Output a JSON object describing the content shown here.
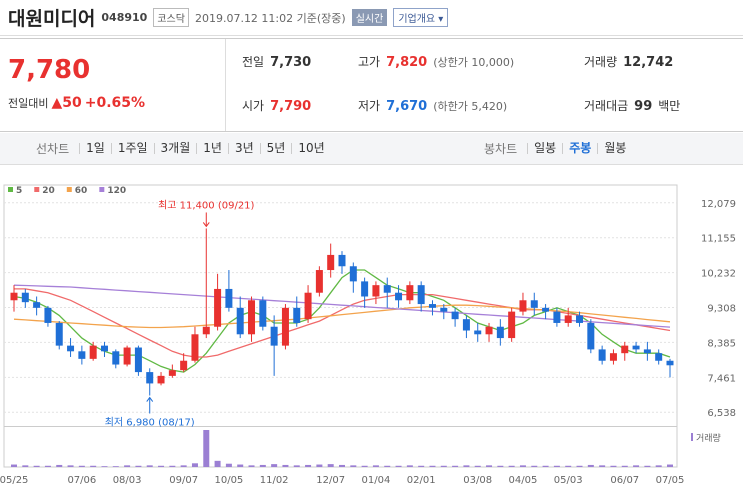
{
  "header": {
    "name": "대원미디어",
    "code": "048910",
    "market": "코스닥",
    "time": "2019.07.12 11:02 기준(장중)",
    "realtime": "실시간",
    "company": "기업개요"
  },
  "quote": {
    "price": "7,780",
    "change_label": "전일대비",
    "change": "▲50",
    "change_pct": "+0.65%",
    "items": [
      {
        "label": "전일",
        "value": "7,730"
      },
      {
        "label": "고가",
        "value": "7,820",
        "note": "(상한가 10,000)"
      },
      {
        "label": "거래량",
        "value": "12,742"
      },
      {
        "label": "시가",
        "value": "7,790"
      },
      {
        "label": "저가",
        "value": "7,670",
        "note": "(하한가 5,420)"
      },
      {
        "label": "거래대금",
        "value": "99",
        "unit": "백만"
      }
    ]
  },
  "tabs": {
    "line_label": "선차트",
    "line": [
      "1일",
      "1주일",
      "3개월",
      "1년",
      "3년",
      "5년",
      "10년"
    ],
    "candle_label": "봉차트",
    "candle": [
      "일봉",
      "주봉",
      "월봉"
    ],
    "selected_candle": 1
  },
  "chart_data": {
    "type": "candlestick",
    "dates": [
      "05/25",
      null,
      null,
      null,
      null,
      null,
      "07/06",
      null,
      null,
      null,
      "08/03",
      null,
      null,
      null,
      null,
      "09/07",
      null,
      null,
      null,
      "10/05",
      null,
      null,
      null,
      "11/02",
      null,
      null,
      null,
      null,
      "12/07",
      null,
      null,
      null,
      "01/04",
      null,
      null,
      null,
      "02/01",
      null,
      null,
      null,
      null,
      "03/08",
      null,
      null,
      null,
      "04/05",
      null,
      null,
      null,
      "05/03",
      null,
      null,
      null,
      null,
      "06/07",
      null,
      null,
      null,
      "07/05"
    ],
    "open": [
      9500,
      9700,
      9450,
      9300,
      8900,
      8300,
      8150,
      7950,
      8300,
      8150,
      7800,
      8250,
      7600,
      7300,
      7500,
      7650,
      7900,
      8600,
      8800,
      9800,
      9300,
      8600,
      9500,
      8800,
      8300,
      9300,
      9000,
      9700,
      10300,
      10700,
      10400,
      10000,
      9600,
      9900,
      9700,
      9500,
      9900,
      9400,
      9300,
      9200,
      9000,
      8700,
      8600,
      8800,
      8500,
      9200,
      9500,
      9300,
      9200,
      8900,
      9100,
      8900,
      8200,
      7900,
      8100,
      8300,
      8200,
      8100,
      7900
    ],
    "high": [
      9900,
      9800,
      9600,
      9350,
      8950,
      8500,
      8300,
      8400,
      8400,
      8200,
      8300,
      8300,
      7700,
      7600,
      7800,
      8100,
      8800,
      11400,
      10200,
      10300,
      9600,
      9600,
      9600,
      9100,
      9400,
      9600,
      9900,
      10400,
      11000,
      10800,
      10500,
      10100,
      10000,
      10100,
      9900,
      10000,
      10000,
      9500,
      9400,
      9300,
      9100,
      8900,
      8900,
      9000,
      9300,
      9700,
      9700,
      9400,
      9300,
      9300,
      9200,
      9000,
      8300,
      8200,
      8400,
      8400,
      8400,
      8200,
      7950
    ],
    "low": [
      9200,
      9300,
      9100,
      8800,
      8200,
      8000,
      7800,
      7900,
      8000,
      7700,
      7750,
      7500,
      6980,
      7250,
      7450,
      7600,
      7850,
      8500,
      8700,
      9200,
      8500,
      8400,
      8700,
      7500,
      8200,
      8800,
      8900,
      9600,
      10100,
      10200,
      9700,
      9300,
      9400,
      9300,
      9300,
      9400,
      9200,
      9100,
      9000,
      8800,
      8500,
      8400,
      8400,
      8300,
      8400,
      9100,
      9100,
      9000,
      8800,
      8800,
      8800,
      8100,
      7800,
      7800,
      7900,
      8100,
      7900,
      7800,
      7461
    ],
    "close": [
      9700,
      9450,
      9300,
      8900,
      8300,
      8150,
      7950,
      8300,
      8150,
      7800,
      8250,
      7600,
      7300,
      7500,
      7650,
      7900,
      8600,
      8800,
      9800,
      9300,
      8600,
      9500,
      8800,
      8300,
      9300,
      8900,
      9700,
      10300,
      10700,
      10400,
      10000,
      9600,
      9900,
      9700,
      9500,
      9900,
      9400,
      9300,
      9200,
      9000,
      8700,
      8600,
      8800,
      8500,
      9200,
      9500,
      9300,
      9200,
      8900,
      9100,
      8900,
      8200,
      7900,
      8100,
      8300,
      8200,
      8100,
      7900,
      7780
    ],
    "up_color": "#e8312f",
    "down_color": "#1f6fd6",
    "ma": [
      {
        "name": "5",
        "color": "#60b944",
        "values": [
          9600,
          9550,
          9450,
          9300,
          9100,
          8800,
          8500,
          8300,
          8150,
          8050,
          8050,
          8050,
          7900,
          7750,
          7650,
          7600,
          7800,
          8100,
          8500,
          8900,
          9100,
          9200,
          9100,
          8900,
          8900,
          8900,
          9000,
          9300,
          9700,
          10100,
          10300,
          10300,
          10100,
          9900,
          9800,
          9700,
          9700,
          9600,
          9500,
          9300,
          9100,
          8900,
          8800,
          8700,
          8800,
          8900,
          9100,
          9200,
          9300,
          9200,
          9100,
          8900,
          8600,
          8400,
          8200,
          8100,
          8100,
          8100,
          8000
        ]
      },
      {
        "name": "20",
        "color": "#f06a6a",
        "values": [
          9800,
          9800,
          9750,
          9700,
          9600,
          9500,
          9350,
          9200,
          9050,
          8900,
          8750,
          8600,
          8450,
          8300,
          8150,
          8050,
          8000,
          8000,
          8050,
          8150,
          8250,
          8350,
          8450,
          8550,
          8650,
          8750,
          8850,
          8950,
          9100,
          9250,
          9400,
          9500,
          9550,
          9600,
          9650,
          9650,
          9650,
          9650,
          9600,
          9550,
          9500,
          9450,
          9400,
          9350,
          9300,
          9250,
          9250,
          9250,
          9200,
          9150,
          9100,
          9050,
          9000,
          8950,
          8900,
          8850,
          8800,
          8750,
          8700
        ]
      },
      {
        "name": "60",
        "color": "#f3a34c",
        "values": [
          9000,
          8980,
          8960,
          8940,
          8920,
          8900,
          8880,
          8860,
          8840,
          8820,
          8800,
          8790,
          8780,
          8780,
          8790,
          8800,
          8820,
          8840,
          8860,
          8880,
          8900,
          8920,
          8940,
          8960,
          8980,
          9000,
          9030,
          9060,
          9090,
          9120,
          9150,
          9180,
          9210,
          9240,
          9270,
          9300,
          9320,
          9340,
          9360,
          9370,
          9370,
          9360,
          9340,
          9320,
          9300,
          9280,
          9260,
          9240,
          9220,
          9200,
          9170,
          9140,
          9110,
          9080,
          9050,
          9020,
          8990,
          8960,
          8930
        ]
      },
      {
        "name": "120",
        "color": "#a680d8",
        "values": [
          9900,
          9890,
          9880,
          9870,
          9860,
          9850,
          9830,
          9810,
          9790,
          9770,
          9750,
          9730,
          9710,
          9690,
          9670,
          9650,
          9630,
          9610,
          9590,
          9570,
          9550,
          9530,
          9510,
          9490,
          9470,
          9450,
          9430,
          9410,
          9390,
          9370,
          9350,
          9330,
          9310,
          9290,
          9270,
          9250,
          9230,
          9210,
          9190,
          9170,
          9150,
          9130,
          9110,
          9090,
          9070,
          9050,
          9030,
          9010,
          8990,
          8970,
          8950,
          8930,
          8910,
          8890,
          8870,
          8850,
          8830,
          8810,
          8790
        ]
      }
    ],
    "volume": {
      "name": "거래량",
      "color": "#9b7fd3",
      "values": [
        60,
        40,
        30,
        30,
        50,
        40,
        30,
        30,
        20,
        20,
        40,
        30,
        40,
        30,
        30,
        40,
        90,
        900,
        150,
        80,
        60,
        40,
        50,
        70,
        50,
        40,
        50,
        60,
        70,
        50,
        40,
        30,
        40,
        30,
        30,
        40,
        30,
        30,
        30,
        30,
        40,
        30,
        40,
        30,
        30,
        40,
        30,
        30,
        30,
        30,
        30,
        50,
        40,
        30,
        30,
        40,
        30,
        40,
        60
      ]
    },
    "max_label": "최고 11,400 (09/21)",
    "min_label": "최저 6,980 (08/17)",
    "ylim": [
      6200,
      12550
    ],
    "yticks": [
      {
        "value": 6538,
        "label": "6,538"
      },
      {
        "value": 7461,
        "label": "7,461"
      },
      {
        "value": 8385,
        "label": "8,385"
      },
      {
        "value": 9308,
        "label": "9,308"
      },
      {
        "value": 10232,
        "label": "10,232"
      },
      {
        "value": 11155,
        "label": "11,155"
      },
      {
        "value": 12079,
        "label": "12,079"
      }
    ],
    "grid": true
  }
}
